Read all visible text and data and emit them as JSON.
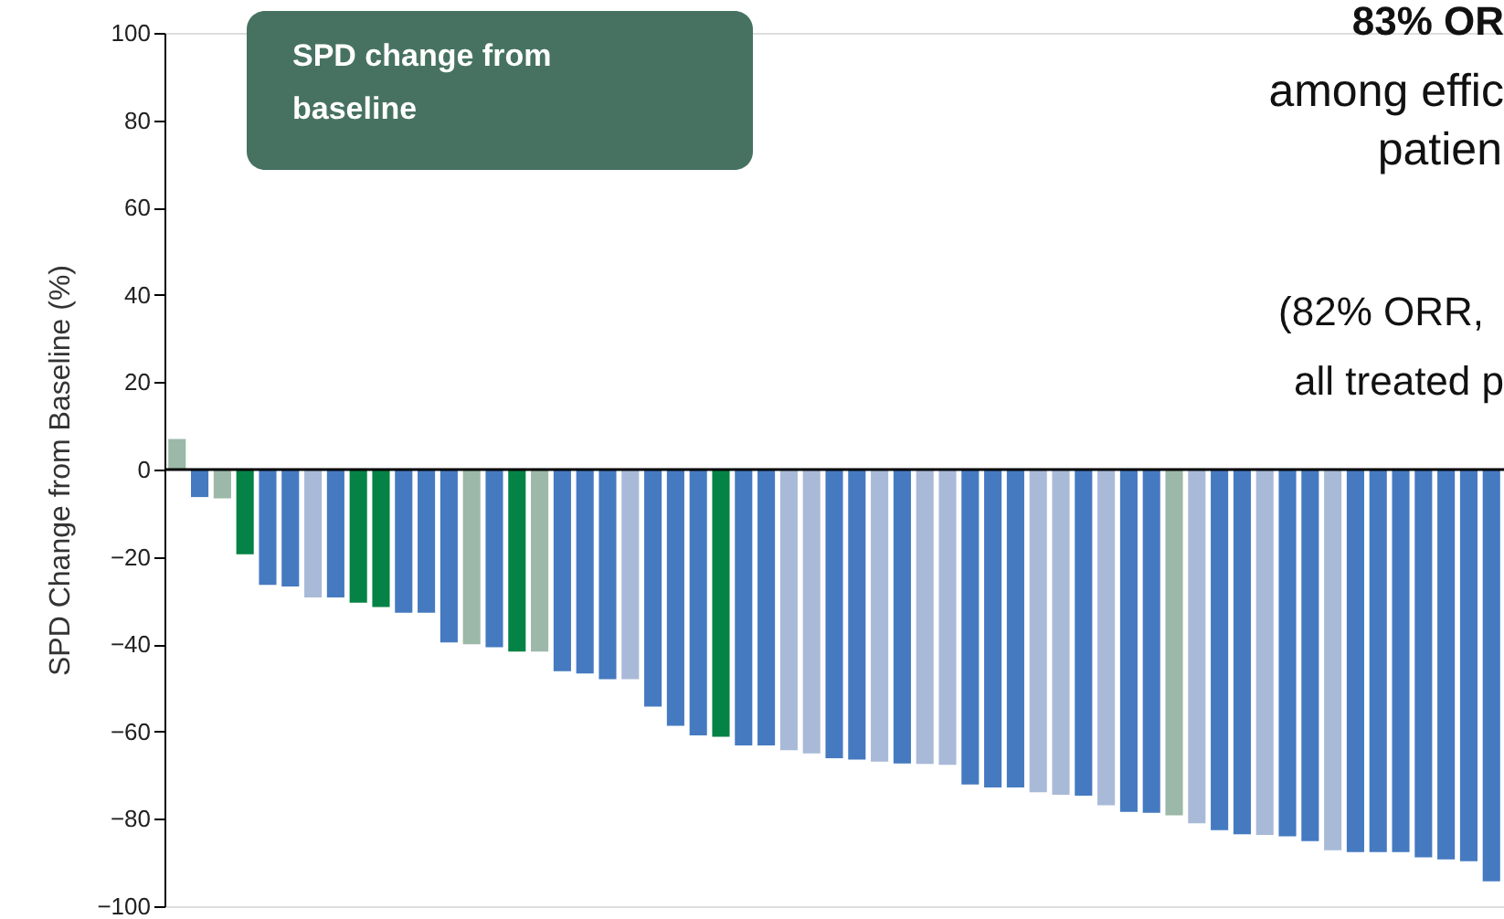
{
  "chart_data": {
    "type": "bar",
    "ylabel": "SPD Change from Baseline (%)",
    "categories": [
      null,
      null,
      null,
      null,
      null,
      null,
      null,
      null,
      null,
      null,
      null,
      null,
      null,
      null,
      null,
      null,
      null,
      null,
      null,
      null,
      null,
      null,
      null,
      null,
      null,
      null,
      null,
      null,
      null,
      null,
      null,
      null,
      null,
      null,
      null,
      null,
      null,
      null,
      null,
      null,
      null,
      null,
      null,
      null,
      null,
      null,
      null,
      null,
      null,
      null,
      null,
      null,
      null,
      null,
      null,
      null,
      null,
      null,
      null
    ],
    "values": [
      7,
      -6.3,
      -6.6,
      -19.4,
      -26.4,
      -26.8,
      -29.3,
      -29.3,
      -30.5,
      -31.5,
      -32.8,
      -32.8,
      -39.6,
      -40,
      -40.7,
      -41.7,
      -41.7,
      -46.2,
      -46.7,
      -48,
      -48,
      -54.3,
      -58.7,
      -60.9,
      -61.2,
      -63.2,
      -63.2,
      -64.3,
      -65,
      -66.1,
      -66.4,
      -66.9,
      -67.3,
      -67.4,
      -67.6,
      -72.1,
      -72.8,
      -72.8,
      -73.9,
      -74.5,
      -74.7,
      -76.9,
      -78.4,
      -78.6,
      -79.2,
      -81,
      -82.6,
      -83.5,
      -83.7,
      -84,
      -85.1,
      -87.2,
      -87.6,
      -87.6,
      -87.6,
      -88.8,
      -89.3,
      -89.7,
      -94.3
    ],
    "colors": [
      "#9cb8a8",
      "#457ac0",
      "#9cb8a8",
      "#058245",
      "#457ac0",
      "#457ac0",
      "#a9bad8",
      "#457ac0",
      "#058245",
      "#058245",
      "#457ac0",
      "#457ac0",
      "#457ac0",
      "#9cb8a8",
      "#457ac0",
      "#058245",
      "#9cb8a8",
      "#457ac0",
      "#457ac0",
      "#457ac0",
      "#a9bad8",
      "#457ac0",
      "#457ac0",
      "#457ac0",
      "#058245",
      "#457ac0",
      "#457ac0",
      "#a9bad8",
      "#a9bad8",
      "#457ac0",
      "#457ac0",
      "#a9bad8",
      "#457ac0",
      "#a9bad8",
      "#a9bad8",
      "#457ac0",
      "#457ac0",
      "#457ac0",
      "#a9bad8",
      "#a9bad8",
      "#457ac0",
      "#a9bad8",
      "#457ac0",
      "#457ac0",
      "#9cb8a8",
      "#a9bad8",
      "#457ac0",
      "#457ac0",
      "#a9bad8",
      "#457ac0",
      "#457ac0",
      "#a9bad8",
      "#457ac0",
      "#457ac0",
      "#457ac0",
      "#457ac0",
      "#457ac0",
      "#457ac0",
      "#457ac0"
    ],
    "ylim": [
      -100,
      100
    ],
    "yticks": [
      -100,
      -80,
      -60,
      -40,
      -20,
      0,
      20,
      40,
      60,
      80,
      100
    ],
    "grid": false,
    "ref_lines": [
      {
        "axis": "y",
        "value": 0,
        "color": "#000000"
      }
    ],
    "annotations": [
      "SPD change from baseline",
      "83% OR",
      "among effic",
      "patien",
      "(82% ORR,",
      "all treated p"
    ]
  }
}
